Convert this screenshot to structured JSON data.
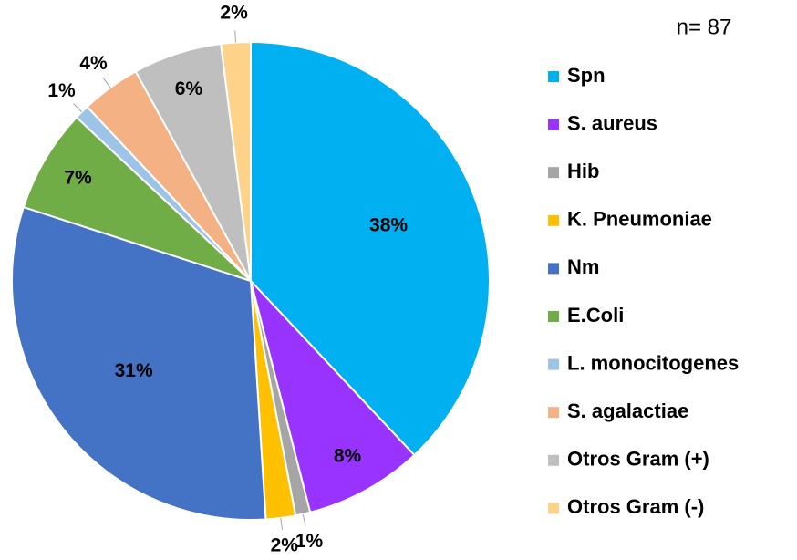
{
  "chart_data": {
    "type": "pie",
    "annotation": "n= 87",
    "categories": [
      "Spn",
      "S. aureus",
      "Hib",
      "K. Pneumoniae",
      "Nm",
      "E.Coli",
      "L. monocitogenes",
      "S. agalactiae",
      "Otros Gram (+)",
      "Otros Gram (-)"
    ],
    "values": [
      38,
      8,
      1,
      2,
      31,
      7,
      1,
      4,
      6,
      2
    ],
    "value_labels": [
      "38%",
      "8%",
      "1%",
      "2%",
      "31%",
      "7%",
      "1%",
      "4%",
      "6%",
      "2%"
    ],
    "colors": [
      "#00b0f0",
      "#9933ff",
      "#a5a5a5",
      "#ffc000",
      "#4472c4",
      "#70ad47",
      "#9dc3e6",
      "#f4b183",
      "#bfbfbf",
      "#ffd28a"
    ],
    "legend": "right"
  }
}
